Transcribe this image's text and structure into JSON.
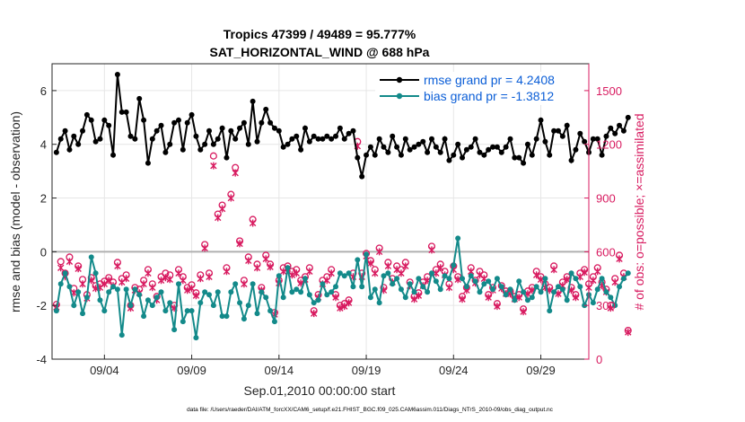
{
  "chart_data": {
    "type": "line",
    "title": "Tropics 47399 / 49489 = 95.777%",
    "subtitle": "SAT_HORIZONTAL_WIND @ 688 hPa",
    "xlabel": "Sep.01,2010 00:00:00 start",
    "ylabel_left": "rmse and bias (model - observation)",
    "ylabel_right": "# of obs: o=possible; ×=assimilated",
    "footer": "data file: /Users/raeder/DAI/ATM_forcXX/CAM6_setup/f.e21.FHIST_BGC.f09_025.CAM6assim.011/Diags_NTrS_2010-09/obs_diag_output.nc",
    "xlim": [
      1,
      31.75
    ],
    "ylim_left": [
      -4,
      7
    ],
    "ylim_right": [
      0,
      1650
    ],
    "x_ticks": [
      4,
      9,
      14,
      19,
      24,
      29
    ],
    "x_tick_labels": [
      "09/04",
      "09/09",
      "09/14",
      "09/19",
      "09/24",
      "09/29"
    ],
    "y_ticks_left": [
      -4,
      -2,
      0,
      2,
      4,
      6
    ],
    "y_ticks_right": [
      0,
      300,
      600,
      900,
      1200,
      1500
    ],
    "grid": true,
    "legend_position": "top-right",
    "colors": {
      "rmse": "#000000",
      "bias": "#138a8a",
      "obs": "#d81b60",
      "zero_line": "#b0b0b0",
      "legend_text": "#0b5ed7"
    },
    "x_start": 1.25,
    "x_step": 0.25,
    "series": [
      {
        "name": "rmse grand pr = 4.2408",
        "values": [
          3.7,
          4.2,
          4.5,
          3.8,
          4.3,
          4.0,
          4.5,
          5.1,
          4.9,
          4.1,
          4.2,
          4.9,
          4.7,
          3.6,
          6.6,
          5.2,
          5.2,
          4.3,
          4.2,
          5.7,
          4.9,
          3.3,
          4.2,
          4.5,
          4.7,
          3.7,
          4.0,
          4.8,
          4.9,
          3.8,
          4.8,
          5.1,
          4.3,
          3.8,
          4.0,
          4.5,
          4.0,
          4.2,
          4.6,
          3.5,
          4.5,
          4.2,
          4.6,
          4.8,
          4.0,
          5.6,
          4.1,
          4.8,
          5.3,
          4.8,
          4.6,
          4.5,
          3.9,
          4.0,
          4.2,
          4.3,
          3.8,
          4.6,
          4.1,
          4.3,
          4.2,
          4.2,
          4.3,
          4.2,
          4.3,
          4.6,
          4.2,
          4.4,
          4.5,
          3.5,
          2.8,
          3.6,
          3.9,
          3.6,
          4.2,
          3.9,
          3.7,
          4.3,
          3.9,
          3.6,
          4.2,
          3.8,
          3.9,
          4.0,
          4.1,
          3.7,
          4.2,
          3.9,
          3.7,
          4.2,
          3.4,
          3.6,
          4.0,
          3.5,
          3.8,
          3.9,
          4.2,
          3.7,
          3.6,
          3.8,
          3.9,
          3.9,
          3.7,
          3.9,
          4.2,
          3.5,
          3.5,
          3.3,
          4.0,
          3.6,
          4.2,
          4.9,
          4.1,
          3.6,
          4.5,
          4.5,
          4.3,
          4.7,
          3.4,
          3.8,
          4.4,
          4.1,
          3.7,
          4.2,
          4.2,
          3.6,
          4.3,
          4.6,
          4.4,
          4.7,
          4.5,
          5.0
        ]
      },
      {
        "name": "bias grand pr = -1.3812",
        "values": [
          -2.2,
          -1.2,
          -0.8,
          -1.3,
          -2.0,
          -1.5,
          -2.3,
          -1.7,
          -0.2,
          -0.8,
          -1.8,
          -2.2,
          -1.5,
          -1.3,
          -1.4,
          -3.1,
          -1.4,
          -2.0,
          -1.4,
          -1.6,
          -2.4,
          -1.8,
          -2.0,
          -1.7,
          -1.5,
          -2.2,
          -1.9,
          -2.9,
          -1.2,
          -2.6,
          -2.2,
          -2.2,
          -3.2,
          -1.9,
          -1.5,
          -1.6,
          -2.0,
          -1.5,
          -2.4,
          -2.4,
          -1.5,
          -1.2,
          -1.9,
          -2.5,
          -2.0,
          -1.2,
          -2.3,
          -1.5,
          -1.7,
          -2.2,
          -2.6,
          -0.9,
          -1.7,
          -0.6,
          -1.5,
          -1.4,
          -1.5,
          -1.0,
          -1.6,
          -1.9,
          -1.8,
          -1.2,
          -1.6,
          -1.5,
          -1.3,
          -0.8,
          -0.9,
          -0.8,
          -1.3,
          -0.3,
          -1.3,
          -0.1,
          -1.7,
          -1.4,
          -1.9,
          -0.9,
          -0.8,
          -1.2,
          -1.0,
          -1.4,
          -1.7,
          -1.2,
          -1.5,
          -1.0,
          -1.3,
          -1.5,
          -0.8,
          -1.1,
          -1.4,
          -0.9,
          -1.0,
          -0.5,
          0.5,
          -1.0,
          -1.3,
          -0.9,
          -1.1,
          -1.5,
          -1.2,
          -1.1,
          -1.4,
          -1.0,
          -1.3,
          -1.6,
          -1.4,
          -1.8,
          -1.1,
          -1.5,
          -1.8,
          -1.7,
          -1.3,
          -1.5,
          -1.0,
          -2.2,
          -1.5,
          -1.3,
          -1.4,
          -1.8,
          -0.8,
          -1.0,
          -1.3,
          -2.0,
          -1.6,
          -1.9,
          -1.4,
          -1.0,
          -1.5,
          -1.7,
          -2.0,
          -1.3,
          -1.0,
          -0.8
        ]
      }
    ],
    "obs_possible": [
      305,
      545,
      480,
      570,
      395,
      520,
      445,
      360,
      455,
      410,
      420,
      435,
      455,
      430,
      540,
      450,
      470,
      300,
      400,
      390,
      440,
      500,
      420,
      350,
      460,
      480,
      470,
      300,
      500,
      460,
      400,
      415,
      370,
      470,
      640,
      480,
      1135,
      810,
      860,
      510,
      920,
      1070,
      660,
      440,
      570,
      780,
      530,
      400,
      580,
      530,
      260,
      440,
      510,
      520,
      490,
      500,
      440,
      460,
      510,
      270,
      360,
      440,
      460,
      500,
      360,
      300,
      310,
      330,
      480,
      1215,
      480,
      590,
      550,
      500,
      620,
      400,
      540,
      450,
      520,
      500,
      540,
      430,
      350,
      370,
      430,
      460,
      630,
      500,
      530,
      490,
      420,
      520,
      460,
      350,
      400,
      510,
      440,
      490,
      470,
      360,
      400,
      310,
      410,
      380,
      380,
      350,
      360,
      280,
      380,
      400,
      490,
      460,
      420,
      400,
      520,
      380,
      430,
      460,
      400,
      360,
      480,
      500,
      420,
      460,
      510,
      430,
      390,
      300,
      450,
      580,
      480,
      160
    ],
    "obs_assimilated": [
      290,
      510,
      460,
      545,
      370,
      505,
      420,
      340,
      440,
      395,
      400,
      420,
      440,
      410,
      520,
      430,
      450,
      285,
      385,
      370,
      420,
      480,
      400,
      330,
      440,
      455,
      445,
      285,
      480,
      440,
      385,
      395,
      355,
      450,
      620,
      460,
      1080,
      790,
      840,
      490,
      900,
      1040,
      645,
      420,
      550,
      760,
      510,
      385,
      560,
      515,
      250,
      425,
      490,
      505,
      470,
      480,
      425,
      445,
      490,
      255,
      345,
      420,
      440,
      480,
      345,
      285,
      295,
      315,
      460,
      1190,
      460,
      575,
      535,
      480,
      600,
      385,
      520,
      430,
      500,
      480,
      520,
      410,
      335,
      355,
      410,
      440,
      610,
      480,
      510,
      470,
      400,
      500,
      445,
      335,
      385,
      490,
      425,
      470,
      450,
      345,
      385,
      295,
      395,
      365,
      365,
      335,
      345,
      265,
      365,
      385,
      470,
      445,
      400,
      385,
      500,
      365,
      410,
      445,
      385,
      345,
      460,
      485,
      400,
      440,
      490,
      410,
      375,
      285,
      430,
      560,
      460,
      150
    ]
  }
}
